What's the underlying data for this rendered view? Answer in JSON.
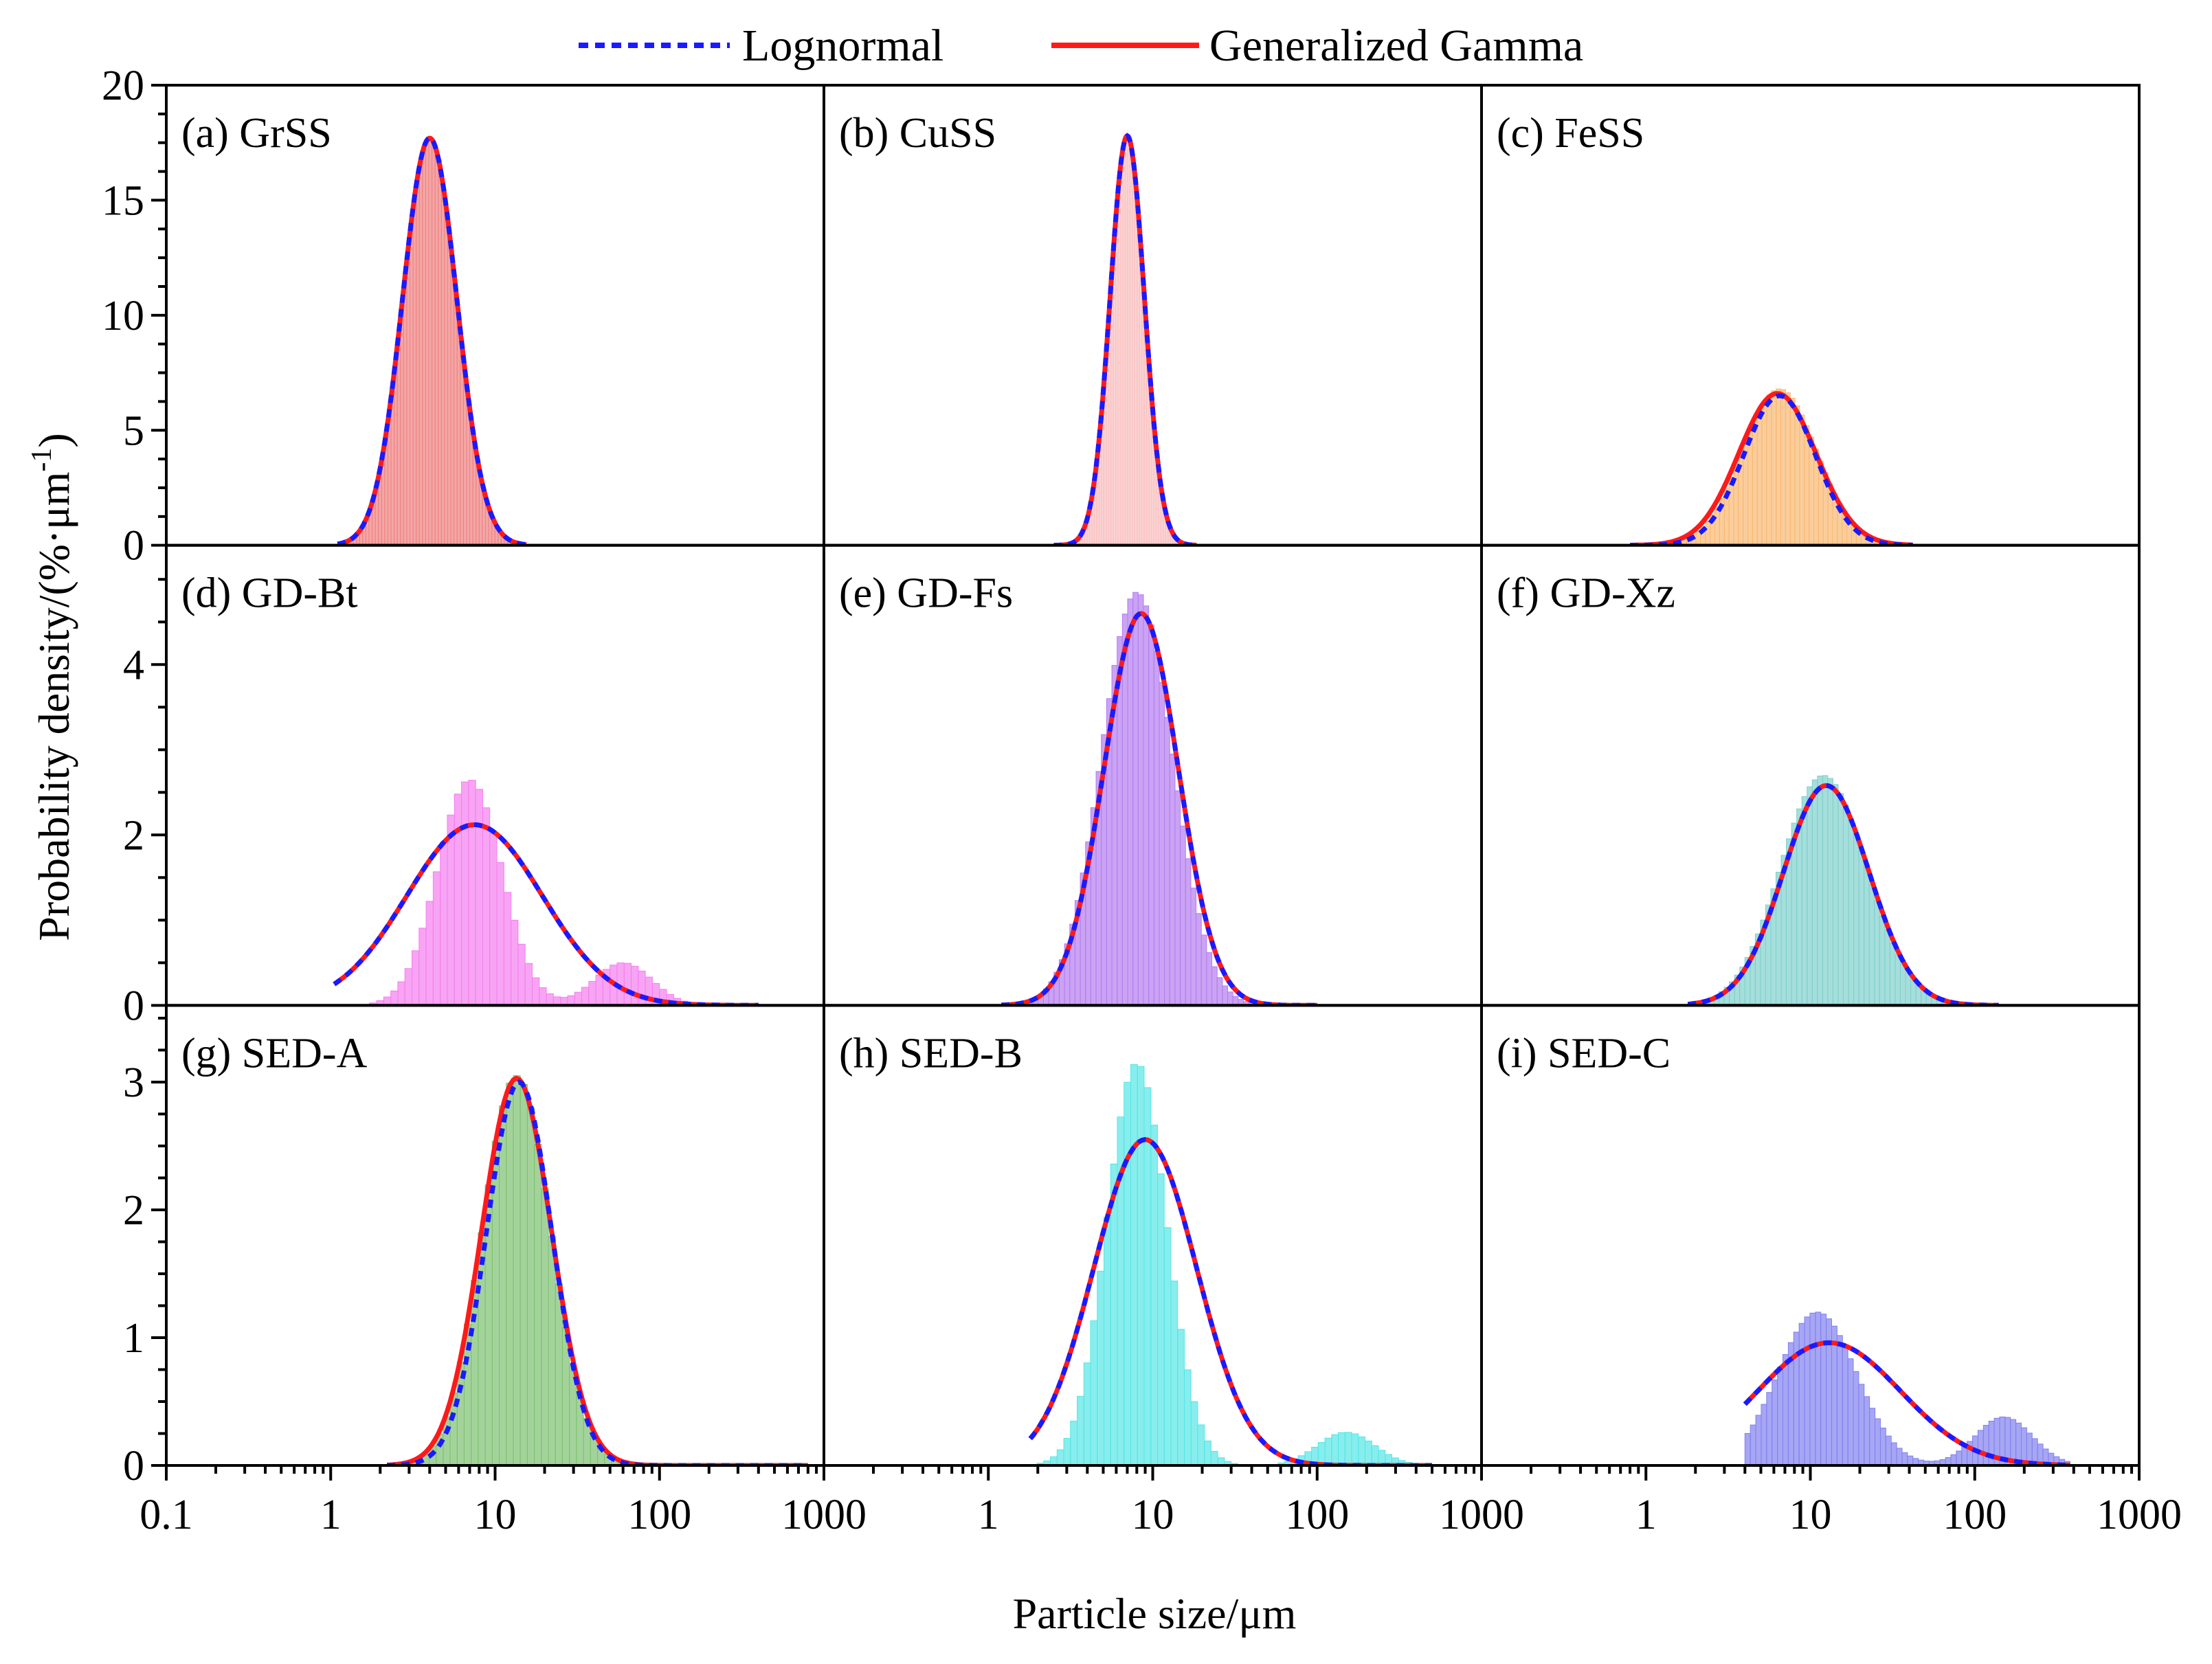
{
  "legend": {
    "items": [
      {
        "label": "Lognormal",
        "color": "#1a1aff",
        "style": "dotted"
      },
      {
        "label": "Generalized Gamma",
        "color": "#ff1a1a",
        "style": "solid"
      }
    ]
  },
  "axes": {
    "xlabel": "Particle size/μm",
    "ylabel": "Probability density/(%·μm",
    "ylabel_sup": "-1",
    "ylabel_end": ")",
    "xscale": "log",
    "xlim": [
      0.1,
      1000
    ],
    "xticks": [
      {
        "value": 0.1,
        "label": "0.1"
      },
      {
        "value": 1,
        "label": "1"
      },
      {
        "value": 10,
        "label": "10"
      },
      {
        "value": 100,
        "label": "100"
      },
      {
        "value": 1000,
        "label": "1000"
      }
    ],
    "rows": [
      {
        "ylim": [
          0,
          20
        ],
        "yticks": [
          {
            "value": 0,
            "label": "0"
          },
          {
            "value": 5,
            "label": "5"
          },
          {
            "value": 10,
            "label": "10"
          },
          {
            "value": 15,
            "label": "15"
          },
          {
            "value": 20,
            "label": "20"
          }
        ]
      },
      {
        "ylim": [
          0,
          5.4
        ],
        "yticks": [
          {
            "value": 0,
            "label": "0"
          },
          {
            "value": 2,
            "label": "2"
          },
          {
            "value": 4,
            "label": "4"
          }
        ]
      },
      {
        "ylim": [
          0,
          3.6
        ],
        "yticks": [
          {
            "value": 0,
            "label": "0"
          },
          {
            "value": 1,
            "label": "1"
          },
          {
            "value": 2,
            "label": "2"
          },
          {
            "value": 3,
            "label": "3"
          }
        ]
      }
    ]
  },
  "chart_data": [
    {
      "type": "bar",
      "title": "(a) GrSS",
      "color": "#f08080",
      "hist": {
        "mu": 4.0,
        "sigma": 0.38,
        "peak": 17.7
      },
      "lognormal": {
        "mu": 4.0,
        "sigma": 0.38,
        "peak": 17.7
      },
      "gengamma": {
        "mu": 4.0,
        "sigma": 0.38,
        "peak": 17.7
      },
      "xrange": [
        1.1,
        15.5
      ]
    },
    {
      "type": "bar",
      "title": "(b) CuSS",
      "color": "#f9c0c0",
      "hist": {
        "mu": 7.0,
        "sigma": 0.24,
        "peak": 17.8
      },
      "lognormal": {
        "mu": 7.0,
        "sigma": 0.24,
        "peak": 17.8
      },
      "gengamma": {
        "mu": 7.0,
        "sigma": 0.24,
        "peak": 17.8
      },
      "xrange": [
        2.5,
        18.5
      ]
    },
    {
      "type": "bar",
      "title": "(c) FeSS",
      "color": "#f9b870",
      "hist": {
        "mu": 6.5,
        "sigma": 0.52,
        "peak": 6.8
      },
      "lognormal": {
        "mu": 6.5,
        "sigma": 0.5,
        "peak": 6.5
      },
      "gengamma": {
        "mu": 6.3,
        "sigma": 0.54,
        "peak": 6.6
      },
      "xrange": [
        0.8,
        42
      ]
    },
    {
      "type": "bar",
      "title": "(d) GD-Bt",
      "color": "#f57ef0",
      "hist": {
        "mu": 7.0,
        "sigma": 0.45,
        "peak": 2.65
      },
      "lognormal": {
        "mu": 7.5,
        "sigma": 0.95,
        "peak": 2.12
      },
      "gengamma": {
        "mu": 7.5,
        "sigma": 0.95,
        "peak": 2.12
      },
      "xrange": [
        1.05,
        400
      ]
    },
    {
      "type": "bar",
      "title": "(e) GD-Fs",
      "color": "#b47cf0",
      "hist": {
        "mu": 8.0,
        "sigma": 0.5,
        "peak": 4.85
      },
      "lognormal": {
        "mu": 8.5,
        "sigma": 0.52,
        "peak": 4.6
      },
      "gengamma": {
        "mu": 8.5,
        "sigma": 0.52,
        "peak": 4.6
      },
      "xrange": [
        1.2,
        100
      ]
    },
    {
      "type": "bar",
      "title": "(f) GD-Xz",
      "color": "#7fd0cc",
      "hist": {
        "mu": 12.0,
        "sigma": 0.6,
        "peak": 2.7
      },
      "lognormal": {
        "mu": 12.5,
        "sigma": 0.6,
        "peak": 2.58
      },
      "gengamma": {
        "mu": 12.5,
        "sigma": 0.6,
        "peak": 2.58
      },
      "xrange": [
        1.8,
        140
      ]
    },
    {
      "type": "bar",
      "title": "(g) SED-A",
      "color": "#7cc070",
      "hist": {
        "mu": 13.5,
        "sigma": 0.48,
        "peak": 3.05
      },
      "lognormal": {
        "mu": 14.0,
        "sigma": 0.46,
        "peak": 3.0
      },
      "gengamma": {
        "mu": 13.5,
        "sigma": 0.49,
        "peak": 3.03
      },
      "xrange": [
        2.2,
        800
      ]
    },
    {
      "type": "bar",
      "title": "(h) SED-B",
      "color": "#55e6e6",
      "hist": {
        "mu": 8.0,
        "sigma": 0.42,
        "peak": 3.15
      },
      "lognormal": {
        "mu": 9.0,
        "sigma": 0.72,
        "peak": 2.55
      },
      "gengamma": {
        "mu": 9.0,
        "sigma": 0.72,
        "peak": 2.55
      },
      "xrange": [
        1.8,
        500
      ]
    },
    {
      "type": "bar",
      "title": "(i) SED-C",
      "color": "#8080f0",
      "hist": {
        "mu": 11.0,
        "sigma": 0.55,
        "peak": 1.2
      },
      "lognormal": {
        "mu": 13.0,
        "sigma": 1.0,
        "peak": 0.96
      },
      "gengamma": {
        "mu": 13.0,
        "sigma": 1.0,
        "peak": 0.96
      },
      "xrange": [
        4.0,
        380
      ]
    }
  ]
}
